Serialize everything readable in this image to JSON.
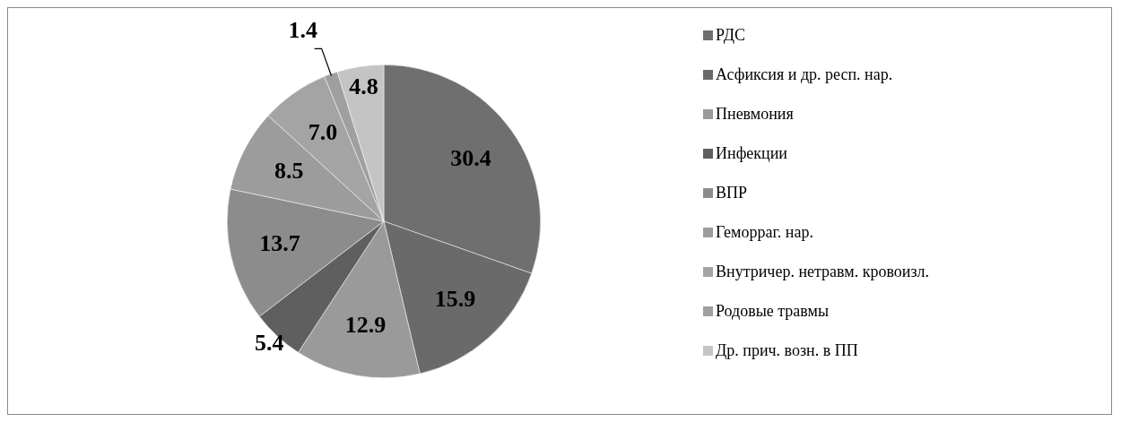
{
  "chart_data": {
    "type": "pie",
    "categories": [
      "РДС",
      "Асфиксия и др. респ. нар.",
      "Пневмония",
      "Инфекции",
      "ВПР",
      "Геморраг. нар.",
      "Внутричер. нетравм. кровоизл.",
      "Родовые травмы",
      "Др. прич. возн. в ПП"
    ],
    "values": [
      30.4,
      15.9,
      12.9,
      5.4,
      13.7,
      8.5,
      7.0,
      1.4,
      4.8
    ],
    "value_labels": [
      "30.4",
      "15.9",
      "12.9",
      "5.4",
      "13.7",
      "8.5",
      "7.0",
      "1.4",
      "4.8"
    ],
    "colors": [
      "#6f6f6f",
      "#6a6a6a",
      "#9a9a9a",
      "#5f5f5f",
      "#8c8c8c",
      "#9c9c9c",
      "#a4a4a4",
      "#9f9f9f",
      "#c4c4c4"
    ],
    "legend": "right"
  }
}
